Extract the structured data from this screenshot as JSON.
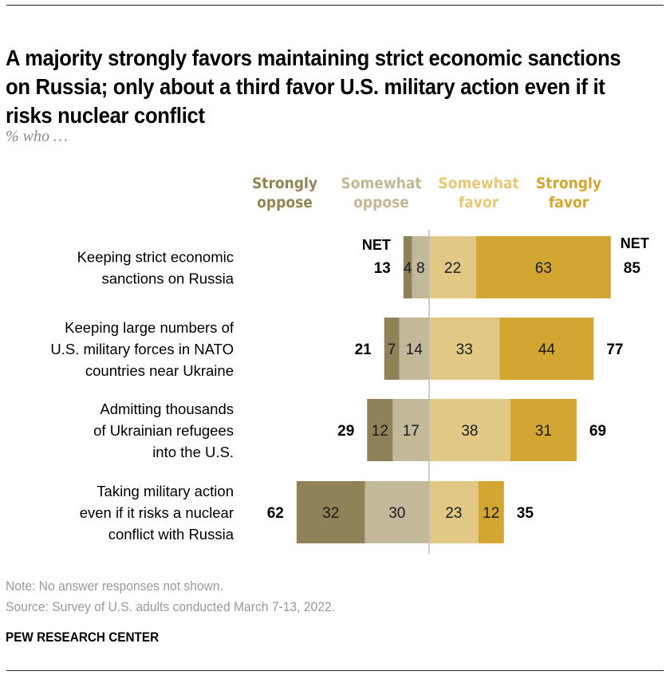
{
  "header": {
    "title": "A majority strongly favors maintaining strict economic sanctions on Russia; only about a third favor U.S. military action even if it risks nuclear conflict",
    "subtitle": "% who …"
  },
  "footer": {
    "note": "Note: No answer responses not shown.",
    "source": "Source: Survey of U.S. adults conducted March 7-13, 2022.",
    "brand": "PEW RESEARCH CENTER"
  },
  "chart_data": {
    "type": "bar",
    "orientation": "horizontal-diverging",
    "title": "A majority strongly favors maintaining strict economic sanctions on Russia; only about a third favor U.S. military action even if it risks nuclear conflict",
    "subtitle": "% who …",
    "categories": [
      "Keeping strict economic sanctions on Russia",
      "Keeping large numbers of U.S. military forces in NATO countries near Ukraine",
      "Admitting thousands of Ukrainian refugees into the U.S.",
      "Taking military action even if it risks a nuclear conflict with Russia"
    ],
    "category_lines": [
      [
        "Keeping strict economic",
        "sanctions on Russia"
      ],
      [
        "Keeping large numbers of ",
        "U.S. military forces in NATO",
        "countries near Ukraine"
      ],
      [
        "Admitting thousands ",
        "of Ukrainian refugees",
        "into the U.S."
      ],
      [
        "Taking military action",
        "even if it risks a nuclear",
        "conflict with Russia"
      ]
    ],
    "series": [
      {
        "name": "Strongly oppose",
        "legend": [
          "Strongly",
          "oppose"
        ],
        "side": "oppose",
        "color": "#8f8259",
        "values": [
          4,
          7,
          12,
          32
        ]
      },
      {
        "name": "Somewhat oppose",
        "legend": [
          "Somewhat",
          "oppose"
        ],
        "side": "oppose",
        "color": "#c2b99b",
        "values": [
          8,
          14,
          17,
          30
        ]
      },
      {
        "name": "Somewhat favor",
        "legend": [
          "Somewhat",
          "favor"
        ],
        "side": "favor",
        "color": "#e1c985",
        "values": [
          22,
          33,
          38,
          23
        ]
      },
      {
        "name": "Strongly favor",
        "legend": [
          "Strongly",
          "favor"
        ],
        "side": "favor",
        "color": "#d3a631",
        "values": [
          63,
          44,
          31,
          12
        ]
      }
    ],
    "legend_colors": [
      "#938553",
      "#c4b894",
      "#e6c877",
      "#d4a531"
    ],
    "net_oppose": [
      13,
      21,
      29,
      62
    ],
    "net_favor": [
      85,
      77,
      69,
      35
    ],
    "net_label": "NET",
    "xlim": [
      -62,
      85
    ],
    "xlabel": "",
    "ylabel": "",
    "grid": false,
    "legend_position": "top"
  }
}
